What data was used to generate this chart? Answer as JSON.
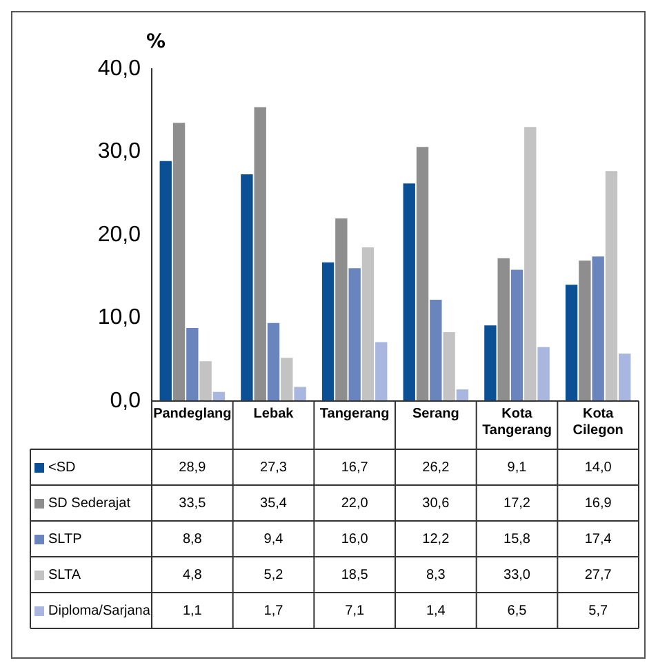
{
  "chart_data": {
    "type": "bar",
    "ylabel": "%",
    "categories": [
      "Pandeglang",
      "Lebak",
      "Tangerang",
      "Serang",
      "Kota Tangerang",
      "Kota Cilegon"
    ],
    "series": [
      {
        "name": "<SD",
        "color": "#0b4f94",
        "values": [
          28.9,
          27.3,
          16.7,
          26.2,
          9.1,
          14.0
        ],
        "value_labels": [
          "28,9",
          "27,3",
          "16,7",
          "26,2",
          "9,1",
          "14,0"
        ]
      },
      {
        "name": "SD Sederajat",
        "color": "#8e8e8e",
        "values": [
          33.5,
          35.4,
          22.0,
          30.6,
          17.2,
          16.9
        ],
        "value_labels": [
          "33,5",
          "35,4",
          "22,0",
          "30,6",
          "17,2",
          "16,9"
        ]
      },
      {
        "name": "SLTP",
        "color": "#6a85bd",
        "values": [
          8.8,
          9.4,
          16.0,
          12.2,
          15.8,
          17.4
        ],
        "value_labels": [
          "8,8",
          "9,4",
          "16,0",
          "12,2",
          "15,8",
          "17,4"
        ]
      },
      {
        "name": "SLTA",
        "color": "#c3c3c3",
        "values": [
          4.8,
          5.2,
          18.5,
          8.3,
          33.0,
          27.7
        ],
        "value_labels": [
          "4,8",
          "5,2",
          "18,5",
          "8,3",
          "33,0",
          "27,7"
        ]
      },
      {
        "name": "Diploma/Sarjana",
        "color": "#a8b6e0",
        "values": [
          1.1,
          1.7,
          7.1,
          1.4,
          6.5,
          5.7
        ],
        "value_labels": [
          "1,1",
          "1,7",
          "7,1",
          "1,4",
          "6,5",
          "5,7"
        ]
      }
    ],
    "ylim": [
      0,
      40
    ],
    "yticks": [
      {
        "value": 0,
        "label": "0,0"
      },
      {
        "value": 10,
        "label": "10,0"
      },
      {
        "value": 20,
        "label": "20,0"
      },
      {
        "value": 30,
        "label": "30,0"
      },
      {
        "value": 40,
        "label": "40,0"
      }
    ],
    "grid": false,
    "legend": "bottom"
  }
}
